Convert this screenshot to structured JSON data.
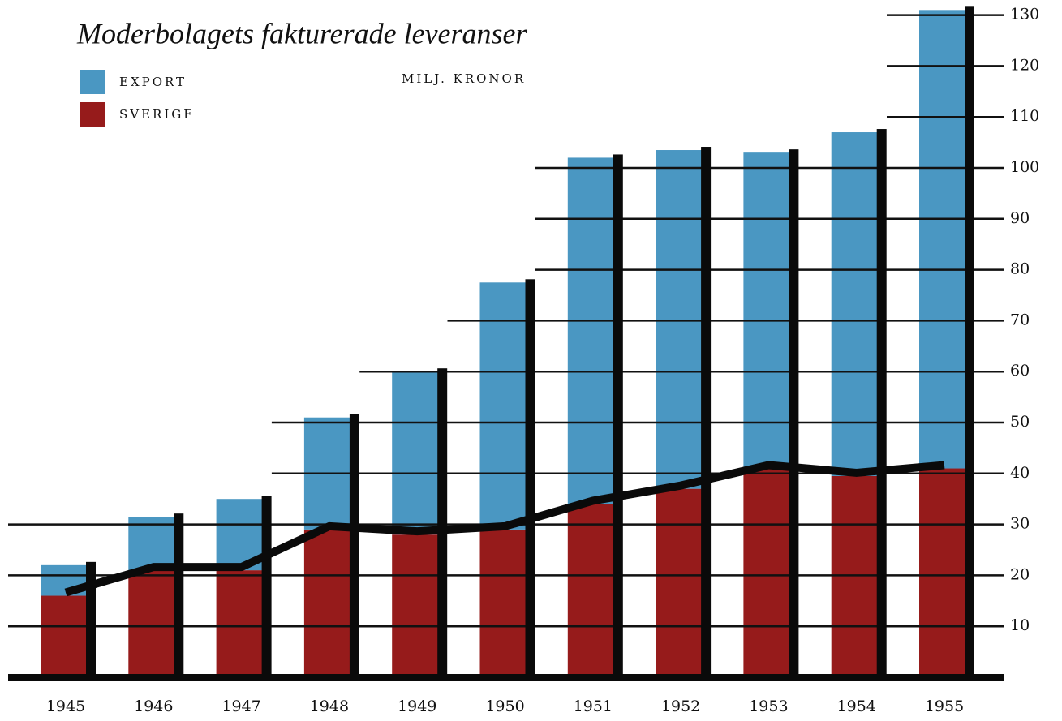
{
  "chart_data": {
    "type": "stacked_bar",
    "title": "Moderbolagets fakturerade leveranser",
    "subtitle": "MILJ. KRONOR",
    "categories": [
      "1945",
      "1946",
      "1947",
      "1948",
      "1949",
      "1950",
      "1951",
      "1952",
      "1953",
      "1954",
      "1955"
    ],
    "series": [
      {
        "name": "SVERIGE",
        "color": "#961b1b",
        "values": [
          16,
          21,
          21,
          29,
          28,
          29,
          34,
          37,
          41,
          39.5,
          41
        ]
      },
      {
        "name": "EXPORT",
        "color": "#4a97c2",
        "values": [
          6,
          10.5,
          14,
          22,
          32,
          48.5,
          68,
          66.5,
          62,
          67.5,
          90
        ]
      }
    ],
    "ylim": [
      0,
      132
    ],
    "yticks": [
      10,
      20,
      30,
      40,
      50,
      60,
      70,
      80,
      90,
      100,
      110,
      120,
      130
    ],
    "grid": true
  }
}
